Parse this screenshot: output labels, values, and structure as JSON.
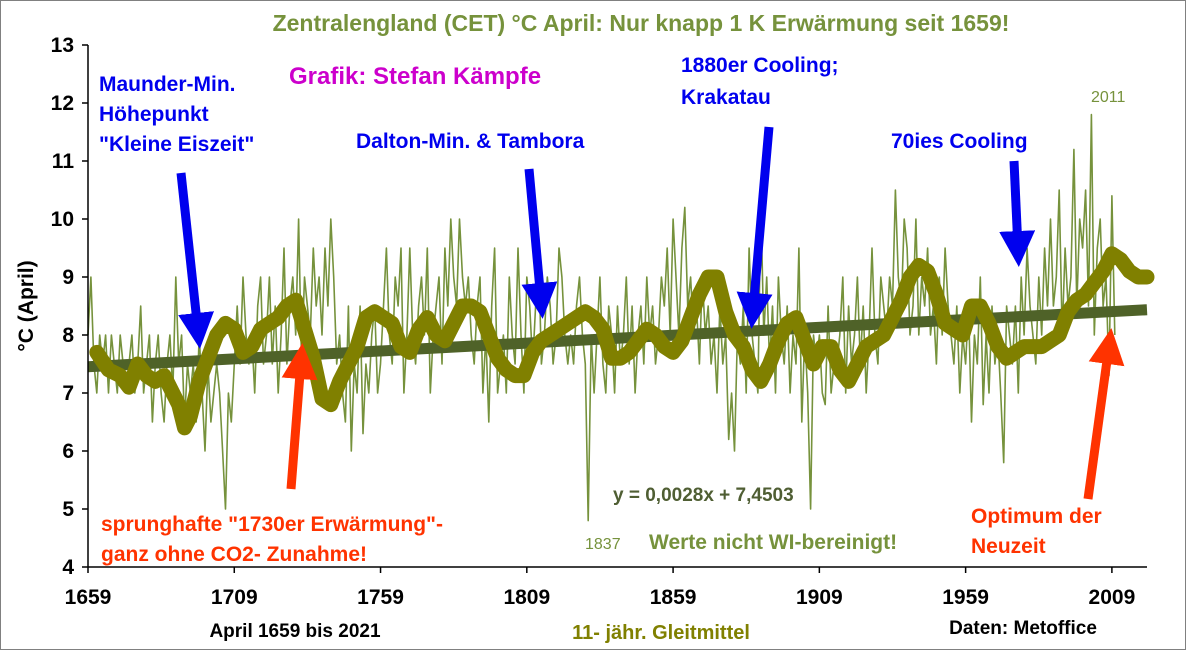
{
  "chart_data": {
    "type": "line",
    "title": "Zentralengland (CET) °C April: Nur knapp 1 K Erwärmung seit 1659!",
    "credit": "Grafik: Stefan Kämpfe",
    "ylabel": "°C (April)",
    "xlabel": "April 1659 bis 2021",
    "moving_average_label": "11- jähr. Gleitmittel",
    "source": "Daten: Metoffice",
    "not_adjusted_note": "Werte nicht WI-bereinigt!",
    "trend_equation": "y = 0,0028x + 7,4503",
    "xlim": [
      1659,
      2021
    ],
    "ylim": [
      4,
      13
    ],
    "x_ticks": [
      1659,
      1709,
      1759,
      1809,
      1859,
      1909,
      1959,
      2009
    ],
    "y_ticks": [
      4,
      5,
      6,
      7,
      8,
      9,
      10,
      11,
      12,
      13
    ],
    "trend": {
      "slope": 0.0028,
      "intercept": 7.4503,
      "color": "#4f6228"
    },
    "series": [
      {
        "name": "",
        "color": "#76923c",
        "x_start": 1659,
        "values": [
          8.0,
          9.0,
          7.5,
          7.0,
          8.0,
          7.5,
          8.0,
          7.0,
          8.0,
          7.5,
          7.0,
          8.0,
          7.5,
          7.0,
          7.5,
          8.0,
          7.0,
          7.5,
          8.5,
          7.0,
          7.5,
          8.0,
          6.5,
          7.5,
          8.0,
          7.0,
          6.5,
          7.5,
          8.0,
          7.0,
          9.0,
          7.5,
          8.0,
          6.5,
          7.5,
          7.0,
          7.5,
          6.5,
          8.0,
          7.0,
          6.0,
          7.5,
          6.5,
          7.0,
          7.5,
          7.0,
          6.0,
          5.0,
          7.0,
          6.5,
          7.5,
          8.5,
          7.5,
          9.0,
          8.0,
          7.5,
          8.0,
          7.0,
          8.5,
          9.0,
          7.5,
          8.0,
          9.0,
          7.5,
          8.5,
          7.0,
          8.0,
          9.5,
          7.5,
          8.5,
          9.0,
          8.0,
          10.0,
          7.5,
          9.0,
          8.5,
          8.0,
          9.5,
          8.5,
          9.0,
          8.0,
          9.5,
          8.5,
          10.0,
          9.0,
          7.5,
          8.0,
          7.0,
          6.5,
          8.5,
          6.0,
          7.5,
          7.0,
          8.5,
          6.3,
          7.5,
          7.0,
          8.0,
          8.5,
          7.0,
          7.5,
          8.5,
          9.5,
          8.0,
          7.5,
          9.0,
          8.5,
          9.5,
          7.0,
          8.0,
          9.5,
          8.0,
          7.5,
          8.5,
          9.0,
          8.0,
          9.5,
          7.0,
          8.0,
          8.5,
          9.0,
          7.5,
          9.5,
          8.5,
          10.0,
          9.0,
          8.5,
          10.0,
          9.0,
          8.5,
          9.0,
          8.0,
          7.5,
          8.5,
          9.0,
          7.0,
          8.0,
          6.5,
          8.5,
          9.5,
          7.0,
          7.5,
          8.0,
          7.0,
          9.0,
          8.0,
          7.5,
          9.5,
          8.0,
          7.0,
          9.0,
          8.5,
          7.5,
          8.5,
          9.5,
          7.5,
          8.0,
          9.0,
          8.5,
          7.5,
          8.0,
          9.5,
          9.0,
          8.0,
          7.5,
          8.0,
          7.5,
          8.5,
          9.0,
          8.0,
          7.5,
          4.8,
          8.0,
          7.0,
          8.0,
          9.0,
          7.5,
          7.0,
          8.5,
          8.0,
          7.0,
          8.5,
          7.5,
          8.0,
          9.0,
          7.5,
          8.5,
          7.0,
          8.0,
          8.5,
          7.5,
          9.0,
          8.0,
          8.5,
          7.5,
          8.0,
          9.0,
          8.5,
          9.5,
          8.0,
          10.0,
          9.0,
          8.0,
          9.5,
          10.2,
          8.5,
          9.0,
          8.0,
          8.5,
          7.5,
          9.0,
          8.0,
          8.5,
          7.5,
          8.0,
          7.0,
          8.5,
          7.5,
          8.0,
          6.2,
          7.0,
          6.0,
          8.0,
          7.5,
          8.5,
          7.0,
          9.5,
          8.0,
          7.5,
          7.0,
          10.3,
          8.0,
          9.0,
          7.5,
          8.5,
          7.0,
          9.0,
          8.0,
          7.5,
          8.5,
          7.0,
          8.0,
          7.5,
          9.5,
          6.5,
          8.0,
          7.0,
          5.0,
          8.0,
          7.5,
          8.0,
          7.0,
          6.8,
          8.5,
          7.0,
          7.5,
          7.5,
          8.0,
          9.0,
          7.0,
          8.5,
          7.5,
          8.0,
          9.0,
          7.5,
          8.5,
          7.0,
          8.0,
          9.5,
          8.0,
          7.5,
          9.0,
          8.5,
          8.0,
          9.0,
          8.5,
          10.5,
          9.0,
          8.5,
          10.0,
          9.5,
          8.0,
          8.5,
          10.0,
          8.0,
          9.0,
          8.5,
          9.5,
          8.0,
          8.5,
          7.5,
          9.0,
          8.0,
          9.5,
          8.5,
          8.0,
          7.5,
          8.5,
          7.0,
          8.0,
          7.5,
          8.5,
          6.5,
          8.0,
          7.5,
          9.0,
          6.8,
          8.0,
          7.0,
          8.5,
          7.5,
          8.0,
          7.0,
          5.8,
          8.5,
          8.0,
          7.5,
          8.5,
          7.0,
          9.0,
          8.0,
          9.5,
          8.5,
          8.0,
          7.5,
          9.0,
          8.0,
          9.5,
          8.5,
          10.0,
          8.5,
          9.0,
          10.5,
          8.0,
          9.5,
          8.5,
          9.0,
          11.2,
          8.5,
          10.0,
          9.5,
          10.5,
          8.5,
          11.8,
          8.0,
          9.5,
          10.0,
          8.5,
          9.0,
          7.3,
          10.4,
          8.0
        ]
      },
      {
        "name": "11- jähr. Gleitmittel",
        "color": "#808000",
        "points": [
          [
            1662,
            7.7
          ],
          [
            1666,
            7.4
          ],
          [
            1670,
            7.3
          ],
          [
            1673,
            7.1
          ],
          [
            1676,
            7.5
          ],
          [
            1679,
            7.3
          ],
          [
            1682,
            7.2
          ],
          [
            1685,
            7.3
          ],
          [
            1688,
            7.0
          ],
          [
            1690,
            6.8
          ],
          [
            1692,
            6.4
          ],
          [
            1694,
            6.6
          ],
          [
            1697,
            7.2
          ],
          [
            1700,
            7.6
          ],
          [
            1703,
            8.0
          ],
          [
            1706,
            8.2
          ],
          [
            1709,
            8.1
          ],
          [
            1712,
            7.7
          ],
          [
            1715,
            7.8
          ],
          [
            1718,
            8.1
          ],
          [
            1721,
            8.2
          ],
          [
            1724,
            8.3
          ],
          [
            1727,
            8.5
          ],
          [
            1730,
            8.6
          ],
          [
            1733,
            8.1
          ],
          [
            1736,
            7.6
          ],
          [
            1739,
            6.9
          ],
          [
            1742,
            6.8
          ],
          [
            1745,
            7.2
          ],
          [
            1748,
            7.5
          ],
          [
            1751,
            7.8
          ],
          [
            1754,
            8.3
          ],
          [
            1757,
            8.4
          ],
          [
            1760,
            8.3
          ],
          [
            1763,
            8.2
          ],
          [
            1766,
            7.8
          ],
          [
            1769,
            7.7
          ],
          [
            1772,
            8.1
          ],
          [
            1775,
            8.3
          ],
          [
            1778,
            8.0
          ],
          [
            1781,
            7.9
          ],
          [
            1784,
            8.2
          ],
          [
            1787,
            8.5
          ],
          [
            1790,
            8.5
          ],
          [
            1793,
            8.4
          ],
          [
            1796,
            8.0
          ],
          [
            1799,
            7.6
          ],
          [
            1802,
            7.4
          ],
          [
            1805,
            7.3
          ],
          [
            1808,
            7.3
          ],
          [
            1811,
            7.7
          ],
          [
            1814,
            7.9
          ],
          [
            1817,
            8.0
          ],
          [
            1820,
            8.1
          ],
          [
            1823,
            8.2
          ],
          [
            1826,
            8.3
          ],
          [
            1829,
            8.4
          ],
          [
            1832,
            8.3
          ],
          [
            1835,
            8.1
          ],
          [
            1838,
            7.6
          ],
          [
            1841,
            7.6
          ],
          [
            1844,
            7.7
          ],
          [
            1847,
            7.9
          ],
          [
            1850,
            8.1
          ],
          [
            1853,
            8.0
          ],
          [
            1856,
            7.8
          ],
          [
            1859,
            7.7
          ],
          [
            1862,
            7.9
          ],
          [
            1865,
            8.3
          ],
          [
            1868,
            8.7
          ],
          [
            1871,
            9.0
          ],
          [
            1874,
            9.0
          ],
          [
            1877,
            8.4
          ],
          [
            1880,
            8.0
          ],
          [
            1883,
            7.8
          ],
          [
            1886,
            7.4
          ],
          [
            1889,
            7.2
          ],
          [
            1892,
            7.5
          ],
          [
            1895,
            7.9
          ],
          [
            1898,
            8.2
          ],
          [
            1901,
            8.3
          ],
          [
            1904,
            7.9
          ],
          [
            1907,
            7.5
          ],
          [
            1910,
            7.8
          ],
          [
            1913,
            7.8
          ],
          [
            1916,
            7.4
          ],
          [
            1919,
            7.2
          ],
          [
            1922,
            7.5
          ],
          [
            1925,
            7.8
          ],
          [
            1928,
            7.9
          ],
          [
            1931,
            8.0
          ],
          [
            1934,
            8.3
          ],
          [
            1937,
            8.6
          ],
          [
            1940,
            9.0
          ],
          [
            1943,
            9.2
          ],
          [
            1946,
            9.1
          ],
          [
            1949,
            8.7
          ],
          [
            1952,
            8.2
          ],
          [
            1955,
            8.1
          ],
          [
            1958,
            8.0
          ],
          [
            1961,
            8.5
          ],
          [
            1964,
            8.5
          ],
          [
            1967,
            8.2
          ],
          [
            1970,
            7.8
          ],
          [
            1973,
            7.6
          ],
          [
            1976,
            7.7
          ],
          [
            1979,
            7.8
          ],
          [
            1982,
            7.8
          ],
          [
            1985,
            7.8
          ],
          [
            1988,
            7.9
          ],
          [
            1991,
            8.0
          ],
          [
            1994,
            8.4
          ],
          [
            1997,
            8.6
          ],
          [
            2000,
            8.7
          ],
          [
            2003,
            8.9
          ],
          [
            2006,
            9.1
          ],
          [
            2009,
            9.4
          ],
          [
            2012,
            9.3
          ],
          [
            2015,
            9.1
          ],
          [
            2018,
            9.0
          ],
          [
            2021,
            9.0
          ]
        ]
      }
    ],
    "annotations": [
      {
        "lines": [
          "Maunder-Min.",
          "Höhepunkt",
          "\"Kleine Eiszeit\""
        ],
        "color": "#0000ee"
      },
      {
        "lines": [
          "Dalton-Min. & Tambora"
        ],
        "color": "#0000ee"
      },
      {
        "lines": [
          "1880er Cooling;",
          "Krakatau"
        ],
        "color": "#0000ee"
      },
      {
        "lines": [
          "70ies Cooling"
        ],
        "color": "#0000ee"
      },
      {
        "lines": [
          "sprunghafte \"1730er Erwärmung\"-",
          "ganz ohne CO2- Zunahme!"
        ],
        "color": "#ff3300"
      },
      {
        "lines": [
          "Optimum der",
          "Neuzeit"
        ],
        "color": "#ff3300"
      }
    ],
    "point_labels": [
      "1837",
      "2011"
    ]
  }
}
